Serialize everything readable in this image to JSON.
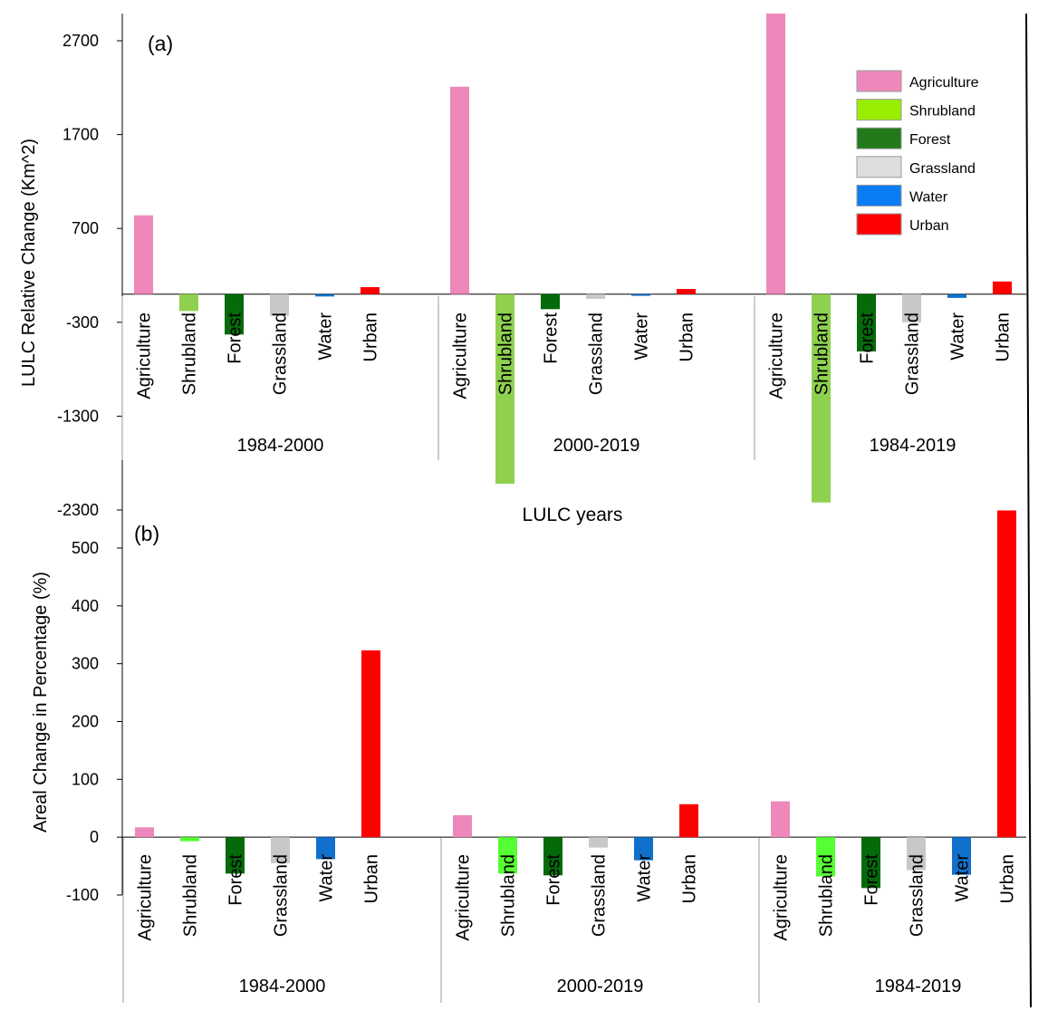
{
  "chart_data": [
    {
      "id": "a",
      "type": "bar",
      "panel_label": "(a)",
      "ylabel": "LULC Relative Change (Km^2)",
      "xlabel": "LULC years",
      "ylim": [
        -2300,
        2990
      ],
      "yticks": [
        2700,
        1700,
        700,
        -300,
        -1300,
        -2300
      ],
      "categories": [
        "Agriculture",
        "Shrubland",
        "Forest",
        "Grassland",
        "Water",
        "Urban"
      ],
      "groups": [
        {
          "label": "1984-2000",
          "values": [
            840,
            -180,
            -430,
            -230,
            -25,
            75
          ]
        },
        {
          "label": "2000-2019",
          "values": [
            2210,
            -2020,
            -160,
            -50,
            -18,
            55
          ]
        },
        {
          "label": "1984-2019",
          "values": [
            2990,
            -2220,
            -610,
            -300,
            -40,
            135
          ]
        }
      ],
      "legend": {
        "position": "top-right",
        "entries": [
          "Agriculture",
          "Shrubland",
          "Forest",
          "Grassland",
          "Water",
          "Urban"
        ]
      }
    },
    {
      "id": "b",
      "type": "bar",
      "panel_label": "(b)",
      "ylabel": "Areal Change in Percentage (%)",
      "xlabel": "",
      "ylim": [
        -100,
        565
      ],
      "yticks": [
        500,
        400,
        300,
        200,
        100,
        0,
        -100
      ],
      "categories": [
        "Agriculture",
        "Shrubland",
        "Forest",
        "Grassland",
        "Water",
        "Urban"
      ],
      "groups": [
        {
          "label": "1984-2000",
          "values": [
            17,
            -7,
            -63,
            -45,
            -38,
            323
          ]
        },
        {
          "label": "2000-2019",
          "values": [
            38,
            -63,
            -66,
            -18,
            -40,
            57
          ]
        },
        {
          "label": "1984-2019",
          "values": [
            62,
            -68,
            -88,
            -57,
            -65,
            565
          ]
        }
      ]
    }
  ],
  "colors": {
    "panel_a": [
      "#ee88bb",
      "#8fd14f",
      "#046a0a",
      "#c8c8c8",
      "#1170cc",
      "#ff0000"
    ],
    "panel_b": [
      "#ee88bb",
      "#55ff33",
      "#046a0a",
      "#c8c8c8",
      "#1170cc",
      "#ff0000"
    ],
    "legend": [
      "#ee88bb",
      "#99ee00",
      "#237a1a",
      "#dedede",
      "#0a7df5",
      "#ff0000"
    ]
  }
}
